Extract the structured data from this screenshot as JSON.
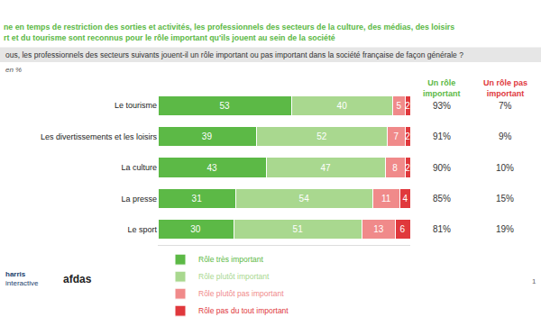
{
  "chart_data": {
    "type": "bar",
    "orientation": "horizontal",
    "stacked": true,
    "data_labels": true,
    "tick_labels": "y",
    "grid": false,
    "legend": "bottom",
    "title": [
      "ne en temps de restriction des sorties et activités, les professionnels des secteurs de la culture, des médias, des loisirs",
      "rt et du tourisme sont reconnus pour le rôle important qu'ils jouent au sein de la société"
    ],
    "subtitle": "ous, les professionnels des secteurs suivants jouent-il un rôle important ou pas important dans la société française de façon générale ?",
    "unit_note": "en %",
    "categories": [
      "Le tourisme",
      "Les divertissements et les loisirs",
      "La culture",
      "La presse",
      "Le sport"
    ],
    "xlim": [
      0,
      100
    ],
    "xticks": [],
    "series": [
      {
        "name": "Rôle très important",
        "color": "#5cb946",
        "values": [
          53,
          39,
          43,
          31,
          30
        ]
      },
      {
        "name": "Rôle plutôt important",
        "color": "#a9d88f",
        "values": [
          40,
          52,
          47,
          54,
          51
        ]
      },
      {
        "name": "Rôle plutôt pas important",
        "color": "#f08a8a",
        "values": [
          5,
          7,
          8,
          11,
          13
        ]
      },
      {
        "name": "Rôle pas du tout important",
        "color": "#e0383c",
        "values": [
          2,
          2,
          2,
          4,
          6
        ]
      }
    ],
    "summary_columns": [
      {
        "header": [
          "Un rôle",
          "important"
        ],
        "color": "#5cb946",
        "labels": [
          "93%",
          "91%",
          "90%",
          "85%",
          "81%"
        ]
      },
      {
        "header": [
          "Un rôle pas",
          "important"
        ],
        "color": "#e0383c",
        "labels": [
          "7%",
          "9%",
          "10%",
          "15%",
          "19%"
        ]
      }
    ],
    "logos": [
      "harris",
      "interactive",
      "afdas"
    ],
    "page": "1"
  }
}
